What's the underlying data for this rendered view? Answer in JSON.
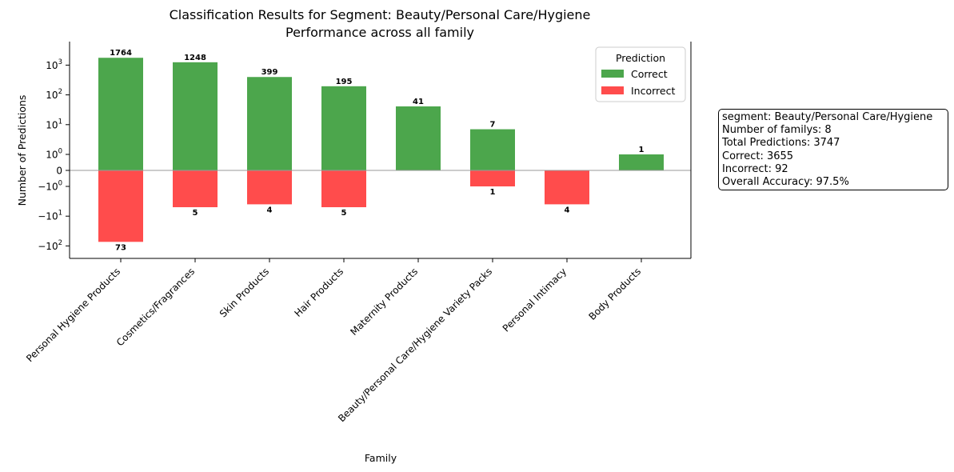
{
  "chart_data": {
    "type": "bar",
    "title": "Classification Results for Segment: Beauty/Personal Care/Hygiene",
    "subtitle": "Performance across all family",
    "xlabel": "Family",
    "ylabel": "Number of Predictions",
    "yscale": "symlog",
    "categories": [
      "Personal Hygiene Products",
      "Cosmetics/Fragrances",
      "Skin Products",
      "Hair Products",
      "Maternity Products",
      "Beauty/Personal Care/Hygiene Variety Packs",
      "Personal Intimacy",
      "Body Products"
    ],
    "series": [
      {
        "name": "Correct",
        "color": "#4ca64c",
        "values": [
          1764,
          1248,
          399,
          195,
          41,
          7,
          0,
          1
        ]
      },
      {
        "name": "Incorrect",
        "color": "#ff4c4c",
        "values": [
          73,
          5,
          4,
          5,
          0,
          1,
          4,
          0
        ]
      }
    ],
    "yticks": [
      {
        "value": 1000,
        "base": "10",
        "exp": "3"
      },
      {
        "value": 100,
        "base": "10",
        "exp": "2"
      },
      {
        "value": 10,
        "base": "10",
        "exp": "1"
      },
      {
        "value": 1,
        "base": "10",
        "exp": "0"
      },
      {
        "value": 0,
        "base": "0",
        "exp": ""
      },
      {
        "value": -1,
        "base": "−10",
        "exp": "0"
      },
      {
        "value": -10,
        "base": "−10",
        "exp": "1"
      },
      {
        "value": -100,
        "base": "−10",
        "exp": "2"
      }
    ],
    "legend": {
      "title": "Prediction",
      "placement": "top-right"
    }
  },
  "info_box": {
    "lines": [
      "segment: Beauty/Personal Care/Hygiene",
      "Number of familys: 8",
      "Total Predictions: 3747",
      "Correct: 3655",
      "Incorrect: 92",
      "Overall Accuracy: 97.5%"
    ]
  }
}
